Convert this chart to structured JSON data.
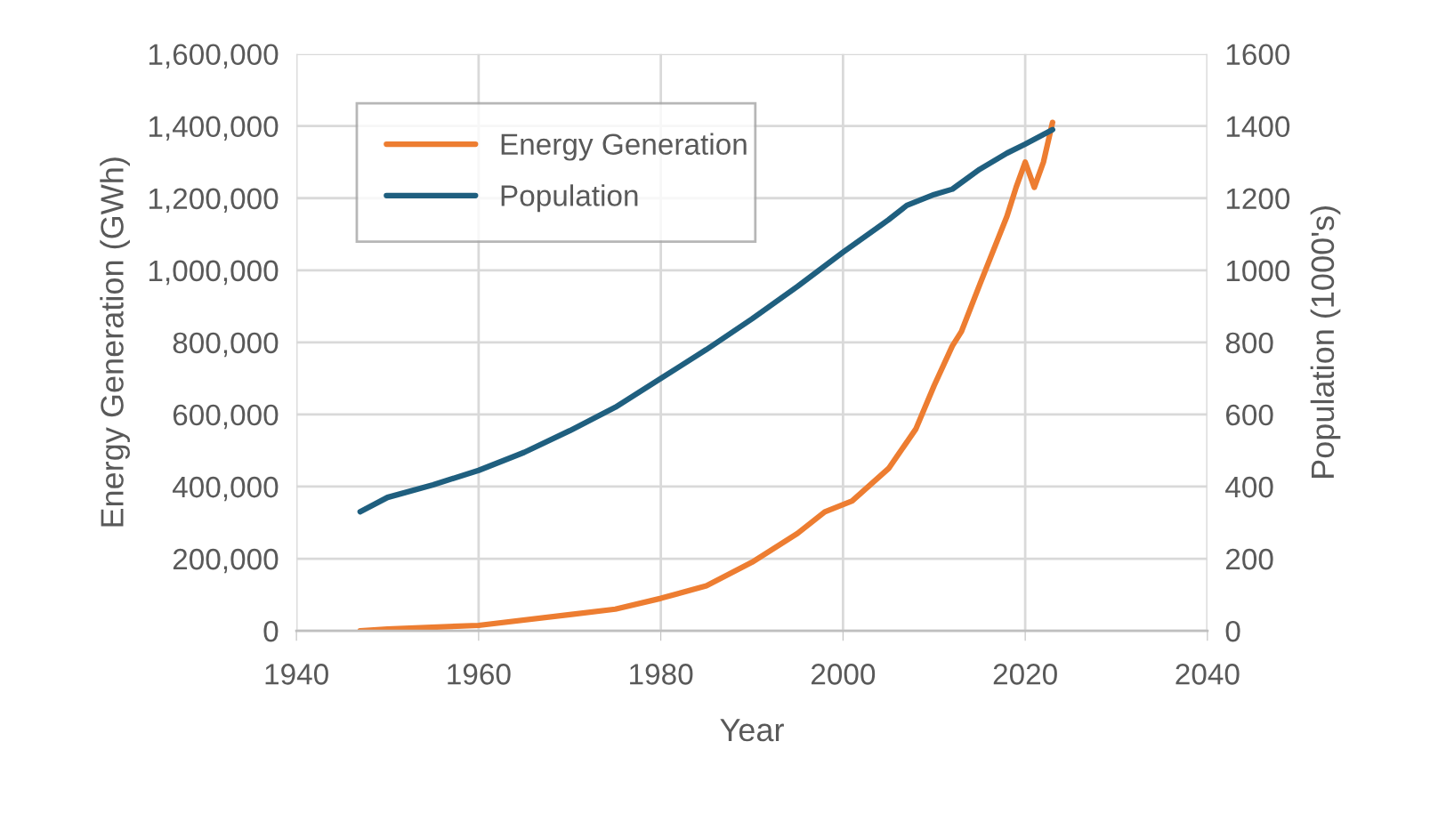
{
  "chart_data": {
    "type": "line",
    "xlabel": "Year",
    "ylabel": "Energy Generation (GWh)",
    "y2label": "Population (1000's)",
    "xlim": [
      1940,
      2040
    ],
    "xticks": [
      1940,
      1960,
      1980,
      2000,
      2020,
      2040
    ],
    "ylim": [
      0,
      1600000
    ],
    "yticks": [
      0,
      {
        "value": 200000,
        "label": "200,000"
      },
      {
        "value": 400000,
        "label": "400,000"
      },
      {
        "value": 600000,
        "label": "600,000"
      },
      {
        "value": 800000,
        "label": "800,000"
      },
      {
        "value": 1000000,
        "label": "1,000,000"
      },
      {
        "value": 1200000,
        "label": "1,200,000"
      },
      {
        "value": 1400000,
        "label": "1,400,000"
      },
      {
        "value": 1600000,
        "label": "1,600,000"
      }
    ],
    "y2lim": [
      0,
      1600
    ],
    "y2ticks": [
      0,
      200,
      400,
      600,
      800,
      1000,
      1200,
      1400,
      1600
    ],
    "grid": true,
    "legend": "top left",
    "marker": "none",
    "line_style": "solid",
    "series": [
      {
        "name": "Energy Generation",
        "color": "#ed7d31",
        "x": [
          1947,
          1950,
          1960,
          1970,
          1975,
          1980,
          1985,
          1990,
          1995,
          1998,
          2001,
          2005,
          2008,
          2010,
          2012,
          2013,
          2015,
          2018,
          2019,
          2020,
          2021,
          2022,
          2023
        ],
        "values": [
          0,
          5000,
          15000,
          45000,
          60000,
          90000,
          125000,
          190000,
          270000,
          330000,
          360000,
          450000,
          560000,
          680000,
          790000,
          830000,
          960000,
          1150000,
          1230000,
          1300000,
          1230000,
          1300000,
          1410000
        ]
      },
      {
        "name": "Population",
        "color": "#1f5f7f",
        "axis": "y2",
        "x": [
          1947,
          1950,
          1955,
          1960,
          1965,
          1970,
          1975,
          1980,
          1985,
          1990,
          1995,
          2000,
          2005,
          2007,
          2010,
          2012,
          2015,
          2018,
          2020,
          2023
        ],
        "values": [
          330,
          370,
          405,
          445,
          495,
          555,
          620,
          700,
          780,
          865,
          955,
          1050,
          1140,
          1180,
          1210,
          1225,
          1280,
          1325,
          1350,
          1390
        ]
      }
    ]
  }
}
